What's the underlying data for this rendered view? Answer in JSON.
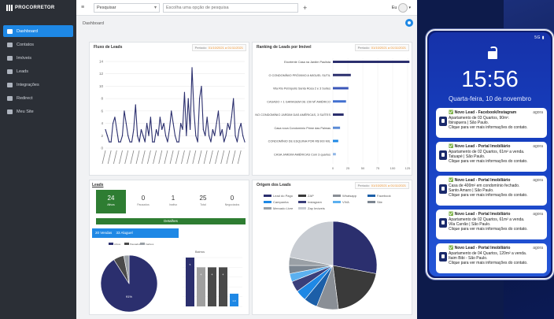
{
  "app": {
    "logo_text": "PROCORRETOR"
  },
  "sidebar": {
    "items": [
      {
        "label": "Dashboard",
        "icon": "dashboard-icon",
        "active": true
      },
      {
        "label": "Contatos",
        "icon": "contacts-icon"
      },
      {
        "label": "Imóveis",
        "icon": "home-icon"
      },
      {
        "label": "Leads",
        "icon": "leads-icon"
      },
      {
        "label": "Integrações",
        "icon": "integrations-icon"
      },
      {
        "label": "Redirect",
        "icon": "redirect-icon"
      },
      {
        "label": "Meu Site",
        "icon": "site-icon"
      }
    ]
  },
  "topbar": {
    "select_value": "Pesquisar",
    "search_placeholder": "Escolha uma opção de pesquisa",
    "user_label": "Eu"
  },
  "breadcrumb": "Dashboard",
  "panels": {
    "leads_flow": {
      "title": "Fluxo de Leads",
      "period_label": "Período:",
      "period_value": "01/10/2021 a 01/11/2021"
    },
    "ranking": {
      "title": "Ranking de Leads por Imóvel",
      "period_label": "Período:",
      "period_value": "01/10/2021 a 01/11/2021"
    },
    "summary": {
      "title": "Leads",
      "details_label": "Detalhes",
      "tabs": [
        "20 Vendas",
        "33 Aluguel"
      ]
    },
    "origin": {
      "title": "Origem dos Leads",
      "period_label": "Período:",
      "period_value": "01/10/2021 a 01/11/2021"
    }
  },
  "stats": [
    {
      "value": "24",
      "label": "Ativos"
    },
    {
      "value": "0",
      "label": "Pausados"
    },
    {
      "value": "1",
      "label": "Inativo"
    },
    {
      "value": "25",
      "label": "Total"
    },
    {
      "value": "0",
      "label": "Negociados"
    }
  ],
  "chart_data": [
    {
      "type": "line",
      "title": "Fluxo de Leads",
      "ylim": [
        0,
        14
      ],
      "yticks": [
        0,
        2,
        4,
        6,
        8,
        10,
        12,
        14
      ],
      "values": [
        3,
        2,
        1,
        1,
        4,
        5,
        3,
        1,
        1,
        2,
        6,
        4,
        2,
        1,
        1,
        3,
        7,
        2,
        1,
        3,
        2,
        1,
        4,
        2,
        5,
        1,
        1,
        3,
        2,
        5,
        3,
        4,
        2,
        1,
        3,
        6,
        4,
        2,
        1,
        1,
        4,
        3,
        9,
        2,
        8,
        3,
        13,
        6,
        2,
        1,
        8,
        10,
        3,
        2,
        5,
        2,
        1,
        3,
        2,
        4,
        6,
        2,
        3,
        1,
        2,
        4,
        3,
        5,
        8,
        2,
        1,
        3,
        4,
        2,
        1
      ],
      "series_color": "#2b2f6e"
    },
    {
      "type": "bar",
      "title": "Ranking de Leads por Imóvel",
      "orientation": "horizontal",
      "categories": [
        "Excelente Casa na Jardim Paulista",
        "O CONDOMÍNIO PRÓXIMO A MIGUEL SUTIL",
        "Vila Rio Petrópolis Santa Rosa 2 e 3 Suítes",
        "CASADO + 1 GARAGEM DE 150 M² AMÉRICO",
        "NO CONDOMÍNIO JARDIM DAS AMÉRICAS, 3 SUÍTES",
        "Casa nova Condomínio Prime das Palmas",
        "CONDOMÍNIO DE ESQUINA POR R$ 900 MIL",
        "CASA JARDIM AMÉRICAS Com 3 quartos"
      ],
      "values": [
        128,
        30,
        26,
        22,
        18,
        12,
        9,
        5
      ],
      "xticks": [
        0,
        25,
        50,
        75,
        100,
        125
      ],
      "xlim": [
        0,
        125
      ]
    },
    {
      "type": "pie",
      "title": "Leads",
      "values": [
        91,
        6,
        3
      ],
      "labels": [
        "Ativos",
        "Pausados",
        "Inativos"
      ],
      "slice_label": "91%",
      "colors": [
        "#2b2f6e",
        "#4a4a4a",
        "#9aa0a6"
      ]
    },
    {
      "type": "bar",
      "title": "Bairros",
      "categories": [
        "A",
        "B",
        "C",
        "D",
        "E"
      ],
      "values": [
        5,
        4,
        4,
        4,
        1.3
      ],
      "colors": [
        "#2b2f6e",
        "#a0a0a0",
        "#4a4a4a",
        "#4a4a4a",
        "#1e88e5"
      ]
    },
    {
      "type": "pie",
      "title": "Origem dos Leads",
      "labels": [
        "Lead do Pago",
        "ZAP",
        "Whatsapp",
        "Facebook",
        "Campanha",
        "Instagram",
        "VIVA",
        "Site",
        "Mercado Livre",
        "Zap Imóveis"
      ],
      "values": [
        28,
        20,
        8,
        5,
        4,
        4,
        3,
        3,
        3,
        22
      ],
      "colors": [
        "#2b2f6e",
        "#3a3a3a",
        "#8a8f96",
        "#1c5fa8",
        "#1e88e5",
        "#3a3f7a",
        "#5bb0ef",
        "#7c8691",
        "#9aa0a6",
        "#c8ccd2"
      ]
    }
  ],
  "phone": {
    "status": "5G ▮",
    "time": "15:56",
    "date": "Quarta-feira, 10 de novembro",
    "notifications": [
      {
        "title": "✅ Novo Lead - Facebook/Instagram",
        "ago": "agora",
        "line1": "Apartamento de 03 Quartos, 90m².",
        "line2": "Ibirapuera | São Paulo.",
        "line3": "Clique para ver mais informações do contato."
      },
      {
        "title": "✅ Novo Lead - Portal Imobiliário",
        "ago": "agora",
        "line1": "Apartamento de 02 Quartos, 61m² a venda.",
        "line2": "Tatuapé | São Paulo.",
        "line3": "Clique para ver mais informações do contato."
      },
      {
        "title": "✅ Novo Lead - Portal Imobiliário",
        "ago": "agora",
        "line1": "Casa de 400m² em condomínio fechado.",
        "line2": "Santo Amaro | São Paulo.",
        "line3": "Clique para ver mais informações do contato."
      },
      {
        "title": "✅ Novo Lead - Portal Imobiliário",
        "ago": "agora",
        "line1": "Apartamento de 02 Quartos, 61m² a venda.",
        "line2": "Vila Carrão | São Paulo.",
        "line3": "Clique para ver mais informações do contato."
      },
      {
        "title": "✅ Novo Lead - Portal Imobiliário",
        "ago": "agora",
        "line1": "Apartamento de 04 Quartos, 120m² a venda.",
        "line2": "Itaim Bibi - São Paulo.",
        "line3": "Clique para ver mais informações do contato."
      }
    ]
  }
}
